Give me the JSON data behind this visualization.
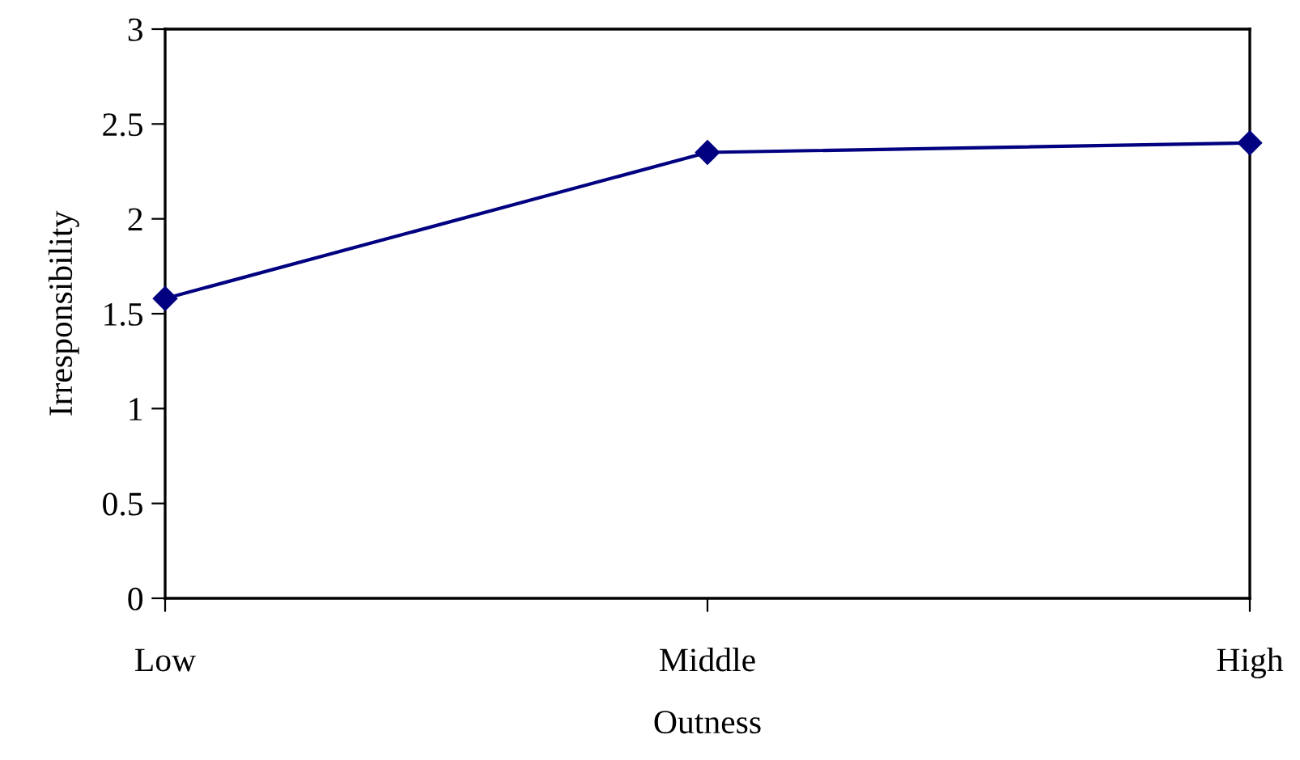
{
  "chart_data": {
    "type": "line",
    "xlabel": "Outness",
    "ylabel": "Irresponsibility",
    "categories": [
      "Low",
      "Middle",
      "High"
    ],
    "series": [
      {
        "color": "#000080",
        "values": [
          1.58,
          2.35,
          2.4
        ]
      }
    ],
    "ylim": [
      0,
      3
    ],
    "yticks": [
      0,
      0.5,
      1,
      1.5,
      2,
      2.5,
      3
    ],
    "marker": "diamond",
    "line_style": "solid",
    "grid": false,
    "legend": false
  }
}
